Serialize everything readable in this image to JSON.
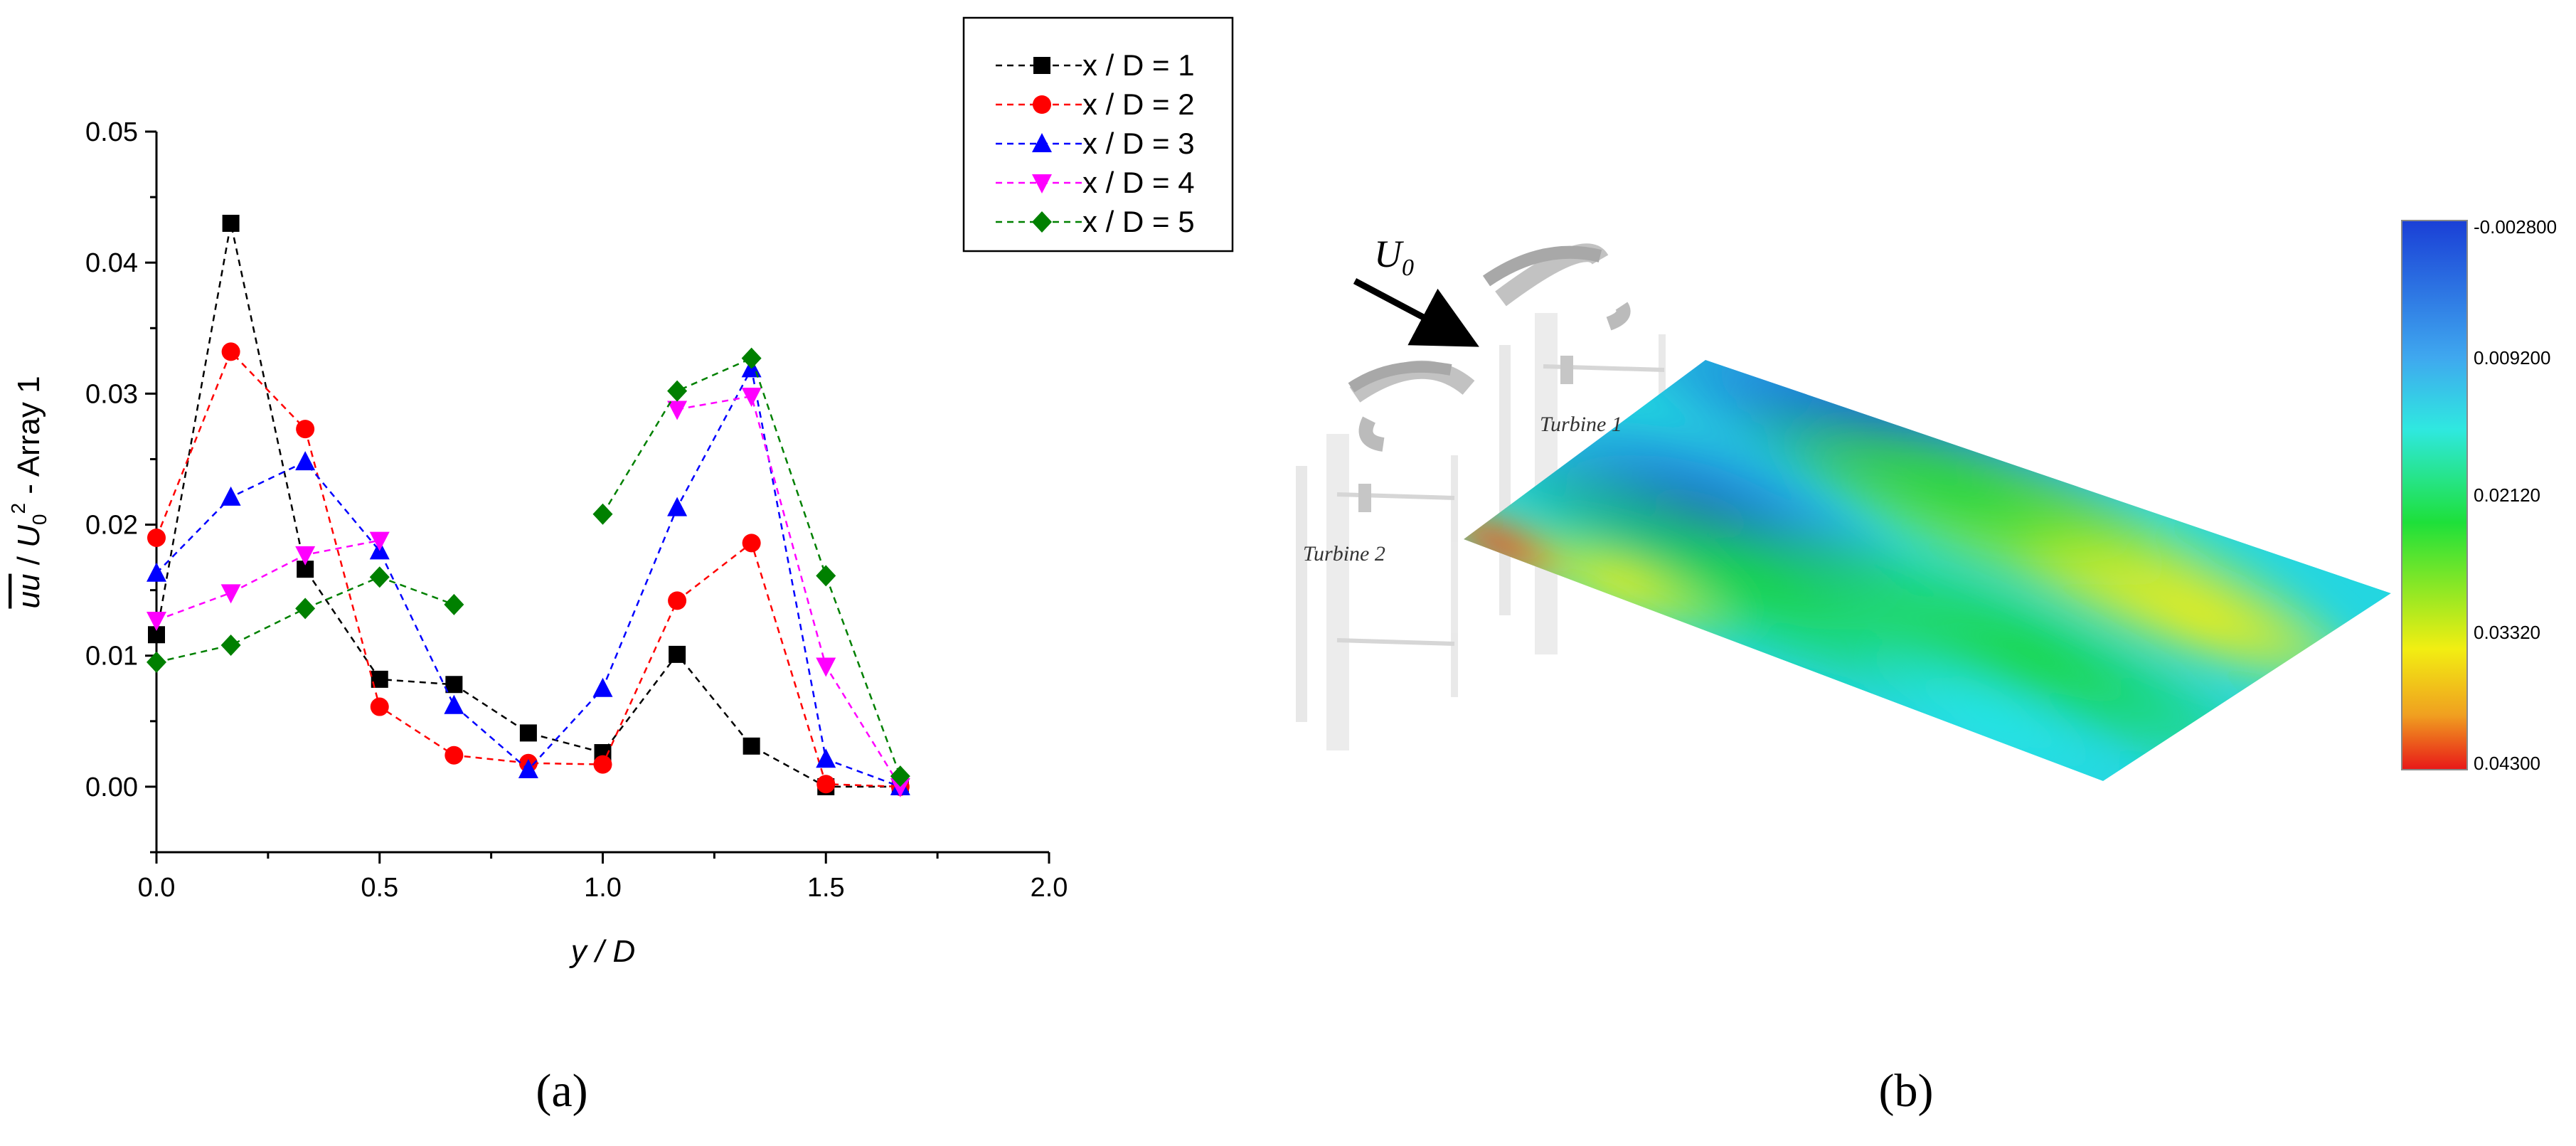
{
  "chart_data": [
    {
      "type": "line",
      "xlabel": "y / D",
      "ylabel": "uu / U0² - Array 1",
      "xlim": [
        0.0,
        2.0
      ],
      "ylim": [
        -0.005,
        0.05
      ],
      "xticks": [
        "0.0",
        "0.5",
        "1.0",
        "1.5",
        "2.0"
      ],
      "yticks": [
        "0.00",
        "0.01",
        "0.02",
        "0.03",
        "0.04",
        "0.05"
      ],
      "legend_position": "top-right",
      "series": [
        {
          "name": "x / D = 1",
          "color": "#000000",
          "marker": "square",
          "points": [
            [
              0,
              0.0116
            ],
            [
              0.1667,
              0.043
            ],
            [
              0.3333,
              0.0166
            ],
            [
              0.5,
              0.0082
            ],
            [
              0.6667,
              0.0078
            ],
            [
              0.8333,
              0.0041
            ],
            [
              1.0,
              0.0026
            ],
            [
              1.1667,
              0.0101
            ],
            [
              1.3333,
              0.0031
            ],
            [
              1.5,
              0.0
            ],
            [
              1.6667,
              0.0
            ]
          ]
        },
        {
          "name": "x / D = 2",
          "color": "#ff0000",
          "marker": "circle",
          "points": [
            [
              0,
              0.019
            ],
            [
              0.1667,
              0.0332
            ],
            [
              0.3333,
              0.0273
            ],
            [
              0.5,
              0.0061
            ],
            [
              0.6667,
              0.0024
            ],
            [
              0.8333,
              0.0018
            ],
            [
              1.0,
              0.0017
            ],
            [
              1.1667,
              0.0142
            ],
            [
              1.3333,
              0.0186
            ],
            [
              1.5,
              0.0002
            ],
            [
              1.6667,
              0.0
            ]
          ]
        },
        {
          "name": "x / D = 3",
          "color": "#0000ff",
          "marker": "triangle-up",
          "points": [
            [
              0,
              0.0163
            ],
            [
              0.1667,
              0.0221
            ],
            [
              0.3333,
              0.0248
            ],
            [
              0.5,
              0.018
            ],
            [
              0.6667,
              0.0062
            ],
            [
              0.8333,
              0.0013
            ],
            [
              1.0,
              0.0075
            ],
            [
              1.1667,
              0.0213
            ],
            [
              1.3333,
              0.0319
            ],
            [
              1.5,
              0.0021
            ],
            [
              1.6667,
              0.0
            ]
          ]
        },
        {
          "name": "x / D = 4",
          "color": "#ff00ff",
          "marker": "triangle-down",
          "points": [
            [
              0,
              0.0127
            ],
            [
              0.1667,
              0.0148
            ],
            [
              0.3333,
              0.0177
            ],
            [
              0.5,
              0.0188
            ],
            null,
            null,
            null,
            [
              1.1667,
              0.0288
            ],
            [
              1.3333,
              0.0298
            ],
            [
              1.5,
              0.0092
            ],
            [
              1.6667,
              0.0
            ]
          ]
        },
        {
          "name": "x / D = 5",
          "color": "#008000",
          "marker": "diamond",
          "points": [
            [
              0,
              0.0095
            ],
            [
              0.1667,
              0.0108
            ],
            [
              0.3333,
              0.0136
            ],
            [
              0.5,
              0.016
            ],
            [
              0.6667,
              0.0139
            ],
            null,
            [
              1.0,
              0.0208
            ],
            [
              1.1667,
              0.0302
            ],
            [
              1.3333,
              0.0327
            ],
            [
              1.5,
              0.0161
            ],
            [
              1.6667,
              0.0008
            ]
          ]
        }
      ]
    },
    {
      "type": "heatmap",
      "colorbar_labels": [
        "-0.002800",
        "0.009200",
        "0.02120",
        "0.03320",
        "0.04300"
      ],
      "colorbar_colors": [
        "#1a3fd6",
        "#3fa8ef",
        "#2fe8e0",
        "#1ee03a",
        "#f2ee12",
        "#f0a020",
        "#e81818"
      ],
      "flow_label": "U0",
      "turbine_labels": [
        "Turbine 1",
        "Turbine 2"
      ]
    }
  ],
  "panel_labels": [
    "(a)",
    "(b)"
  ]
}
